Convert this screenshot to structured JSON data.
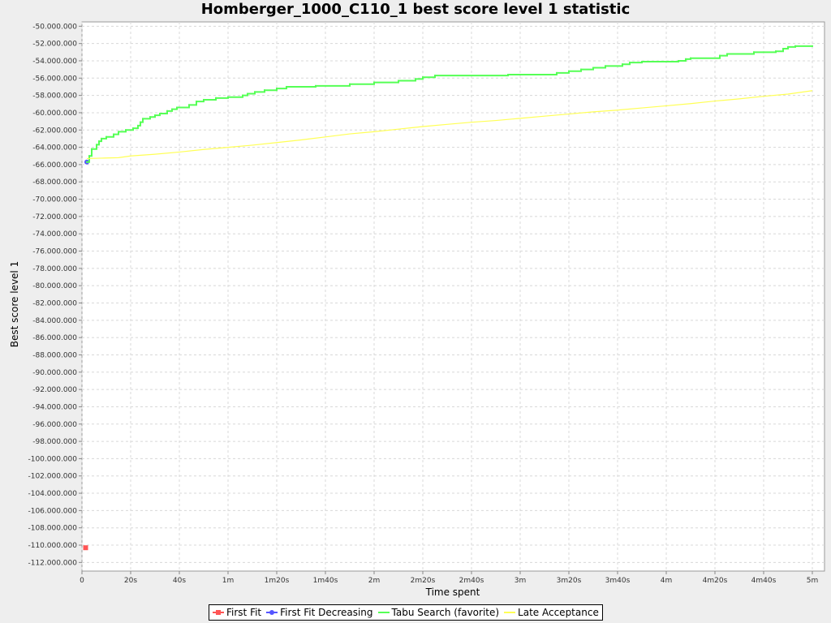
{
  "chart_data": {
    "type": "line",
    "title": "Homberger_1000_C110_1 best score level 1 statistic",
    "xlabel": "Time spent",
    "ylabel": "Best score level 1",
    "xlim": [
      0,
      305
    ],
    "ylim": [
      -113000000,
      -49500000
    ],
    "x_ticks": [
      {
        "value": 0,
        "label": "0"
      },
      {
        "value": 20,
        "label": "20s"
      },
      {
        "value": 40,
        "label": "40s"
      },
      {
        "value": 60,
        "label": "1m"
      },
      {
        "value": 80,
        "label": "1m20s"
      },
      {
        "value": 100,
        "label": "1m40s"
      },
      {
        "value": 120,
        "label": "2m"
      },
      {
        "value": 140,
        "label": "2m20s"
      },
      {
        "value": 160,
        "label": "2m40s"
      },
      {
        "value": 180,
        "label": "3m"
      },
      {
        "value": 200,
        "label": "3m20s"
      },
      {
        "value": 220,
        "label": "3m40s"
      },
      {
        "value": 240,
        "label": "4m"
      },
      {
        "value": 260,
        "label": "4m20s"
      },
      {
        "value": 280,
        "label": "4m40s"
      },
      {
        "value": 300,
        "label": "5m"
      }
    ],
    "y_ticks": [
      {
        "value": -50000000,
        "label": "-50.000.000"
      },
      {
        "value": -52000000,
        "label": "-52.000.000"
      },
      {
        "value": -54000000,
        "label": "-54.000.000"
      },
      {
        "value": -56000000,
        "label": "-56.000.000"
      },
      {
        "value": -58000000,
        "label": "-58.000.000"
      },
      {
        "value": -60000000,
        "label": "-60.000.000"
      },
      {
        "value": -62000000,
        "label": "-62.000.000"
      },
      {
        "value": -64000000,
        "label": "-64.000.000"
      },
      {
        "value": -66000000,
        "label": "-66.000.000"
      },
      {
        "value": -68000000,
        "label": "-68.000.000"
      },
      {
        "value": -70000000,
        "label": "-70.000.000"
      },
      {
        "value": -72000000,
        "label": "-72.000.000"
      },
      {
        "value": -74000000,
        "label": "-74.000.000"
      },
      {
        "value": -76000000,
        "label": "-76.000.000"
      },
      {
        "value": -78000000,
        "label": "-78.000.000"
      },
      {
        "value": -80000000,
        "label": "-80.000.000"
      },
      {
        "value": -82000000,
        "label": "-82.000.000"
      },
      {
        "value": -84000000,
        "label": "-84.000.000"
      },
      {
        "value": -86000000,
        "label": "-86.000.000"
      },
      {
        "value": -88000000,
        "label": "-88.000.000"
      },
      {
        "value": -90000000,
        "label": "-90.000.000"
      },
      {
        "value": -92000000,
        "label": "-92.000.000"
      },
      {
        "value": -94000000,
        "label": "-94.000.000"
      },
      {
        "value": -96000000,
        "label": "-96.000.000"
      },
      {
        "value": -98000000,
        "label": "-98.000.000"
      },
      {
        "value": -100000000,
        "label": "-100.000.000"
      },
      {
        "value": -102000000,
        "label": "-102.000.000"
      },
      {
        "value": -104000000,
        "label": "-104.000.000"
      },
      {
        "value": -106000000,
        "label": "-106.000.000"
      },
      {
        "value": -108000000,
        "label": "-108.000.000"
      },
      {
        "value": -110000000,
        "label": "-110.000.000"
      },
      {
        "value": -112000000,
        "label": "-112.000.000"
      }
    ],
    "grid": true,
    "legend_position": "bottom",
    "series": [
      {
        "name": "First Fit",
        "color": "#ff5555",
        "marker": "square",
        "step": false,
        "points": [
          [
            1.5,
            -110300000
          ]
        ]
      },
      {
        "name": "First Fit Decreasing",
        "color": "#5555ff",
        "marker": "circle",
        "step": false,
        "points": [
          [
            2,
            -65700000
          ]
        ]
      },
      {
        "name": "Tabu Search (favorite)",
        "color": "#55ff55",
        "marker": "none",
        "step": true,
        "points": [
          [
            2,
            -65700000
          ],
          [
            3,
            -65000000
          ],
          [
            4,
            -64200000
          ],
          [
            6,
            -63700000
          ],
          [
            7,
            -63300000
          ],
          [
            8,
            -63000000
          ],
          [
            10,
            -62800000
          ],
          [
            13,
            -62500000
          ],
          [
            15,
            -62200000
          ],
          [
            18,
            -62000000
          ],
          [
            21,
            -61800000
          ],
          [
            23,
            -61500000
          ],
          [
            24,
            -61100000
          ],
          [
            25,
            -60700000
          ],
          [
            28,
            -60500000
          ],
          [
            30,
            -60300000
          ],
          [
            32,
            -60100000
          ],
          [
            35,
            -59800000
          ],
          [
            37,
            -59600000
          ],
          [
            39,
            -59400000
          ],
          [
            44,
            -59100000
          ],
          [
            47,
            -58700000
          ],
          [
            50,
            -58500000
          ],
          [
            55,
            -58300000
          ],
          [
            60,
            -58200000
          ],
          [
            66,
            -58000000
          ],
          [
            68,
            -57800000
          ],
          [
            71,
            -57600000
          ],
          [
            75,
            -57400000
          ],
          [
            80,
            -57200000
          ],
          [
            84,
            -57000000
          ],
          [
            96,
            -56900000
          ],
          [
            110,
            -56700000
          ],
          [
            120,
            -56500000
          ],
          [
            130,
            -56300000
          ],
          [
            137,
            -56100000
          ],
          [
            140,
            -55900000
          ],
          [
            145,
            -55700000
          ],
          [
            175,
            -55600000
          ],
          [
            195,
            -55400000
          ],
          [
            200,
            -55200000
          ],
          [
            205,
            -55000000
          ],
          [
            210,
            -54800000
          ],
          [
            215,
            -54600000
          ],
          [
            222,
            -54400000
          ],
          [
            225,
            -54200000
          ],
          [
            230,
            -54100000
          ],
          [
            245,
            -54000000
          ],
          [
            248,
            -53800000
          ],
          [
            250,
            -53700000
          ],
          [
            262,
            -53400000
          ],
          [
            265,
            -53200000
          ],
          [
            276,
            -53000000
          ],
          [
            285,
            -52900000
          ],
          [
            288,
            -52600000
          ],
          [
            290,
            -52400000
          ],
          [
            293,
            -52300000
          ],
          [
            300,
            -52300000
          ]
        ]
      },
      {
        "name": "Late Acceptance",
        "color": "#ffff55",
        "marker": "none",
        "step": false,
        "points": [
          [
            2,
            -65300000
          ],
          [
            8,
            -65250000
          ],
          [
            15,
            -65200000
          ],
          [
            20,
            -65000000
          ],
          [
            30,
            -64800000
          ],
          [
            40,
            -64550000
          ],
          [
            50,
            -64250000
          ],
          [
            60,
            -64000000
          ],
          [
            70,
            -63750000
          ],
          [
            80,
            -63450000
          ],
          [
            90,
            -63150000
          ],
          [
            100,
            -62800000
          ],
          [
            110,
            -62450000
          ],
          [
            120,
            -62200000
          ],
          [
            130,
            -61900000
          ],
          [
            140,
            -61600000
          ],
          [
            150,
            -61350000
          ],
          [
            160,
            -61100000
          ],
          [
            170,
            -60900000
          ],
          [
            180,
            -60650000
          ],
          [
            190,
            -60400000
          ],
          [
            200,
            -60150000
          ],
          [
            210,
            -59900000
          ],
          [
            220,
            -59700000
          ],
          [
            230,
            -59450000
          ],
          [
            240,
            -59200000
          ],
          [
            250,
            -58950000
          ],
          [
            260,
            -58650000
          ],
          [
            270,
            -58400000
          ],
          [
            280,
            -58100000
          ],
          [
            290,
            -57850000
          ],
          [
            300,
            -57450000
          ]
        ]
      }
    ]
  }
}
